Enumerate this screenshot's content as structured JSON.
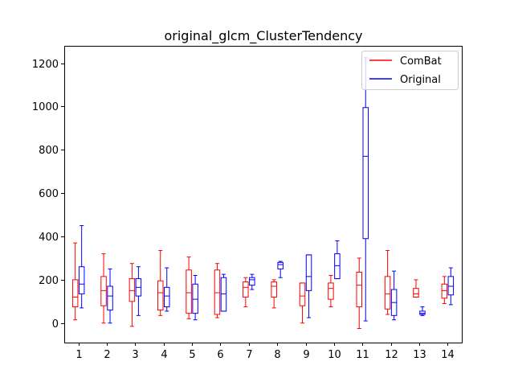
{
  "chart_data": {
    "type": "box",
    "title": "original_glcm_ClusterTendency",
    "xlabel": "",
    "ylabel": "",
    "categories": [
      "1",
      "2",
      "3",
      "4",
      "5",
      "6",
      "7",
      "8",
      "9",
      "10",
      "11",
      "12",
      "13",
      "14"
    ],
    "ylim": [
      -90,
      1280
    ],
    "yticks": [
      0,
      200,
      400,
      600,
      800,
      1000,
      1200
    ],
    "grid": false,
    "legend_position": "top-right",
    "series": [
      {
        "name": "ComBat",
        "color": "#ff0000",
        "boxes": [
          {
            "whislo": 15,
            "q1": 75,
            "med": 120,
            "q3": 200,
            "whishi": 370
          },
          {
            "whislo": 0,
            "q1": 80,
            "med": 150,
            "q3": 215,
            "whishi": 320
          },
          {
            "whislo": -15,
            "q1": 100,
            "med": 150,
            "q3": 205,
            "whishi": 275
          },
          {
            "whislo": 35,
            "q1": 60,
            "med": 140,
            "q3": 195,
            "whishi": 335
          },
          {
            "whislo": 20,
            "q1": 45,
            "med": 140,
            "q3": 245,
            "whishi": 305
          },
          {
            "whislo": 25,
            "q1": 40,
            "med": 140,
            "q3": 245,
            "whishi": 275
          },
          {
            "whislo": 75,
            "q1": 120,
            "med": 165,
            "q3": 190,
            "whishi": 210
          },
          {
            "whislo": 70,
            "q1": 120,
            "med": 170,
            "q3": 190,
            "whishi": 200
          },
          {
            "whislo": 0,
            "q1": 80,
            "med": 125,
            "q3": 185,
            "whishi": 185
          },
          {
            "whislo": 75,
            "q1": 110,
            "med": 160,
            "q3": 185,
            "whishi": 220
          },
          {
            "whislo": -25,
            "q1": 75,
            "med": 175,
            "q3": 235,
            "whishi": 300
          },
          {
            "whislo": 40,
            "q1": 65,
            "med": 135,
            "q3": 215,
            "whishi": 335
          },
          {
            "whislo": 120,
            "q1": 120,
            "med": 135,
            "q3": 160,
            "whishi": 200
          },
          {
            "whislo": 90,
            "q1": 115,
            "med": 150,
            "q3": 180,
            "whishi": 215
          }
        ]
      },
      {
        "name": "Original",
        "color": "#0000ff",
        "boxes": [
          {
            "whislo": 70,
            "q1": 135,
            "med": 180,
            "q3": 260,
            "whishi": 450
          },
          {
            "whislo": 0,
            "q1": 60,
            "med": 125,
            "q3": 170,
            "whishi": 250
          },
          {
            "whislo": 35,
            "q1": 125,
            "med": 165,
            "q3": 205,
            "whishi": 260
          },
          {
            "whislo": 55,
            "q1": 75,
            "med": 125,
            "q3": 165,
            "whishi": 255
          },
          {
            "whislo": 15,
            "q1": 45,
            "med": 110,
            "q3": 180,
            "whishi": 220
          },
          {
            "whislo": 55,
            "q1": 55,
            "med": 135,
            "q3": 210,
            "whishi": 225
          },
          {
            "whislo": 155,
            "q1": 175,
            "med": 200,
            "q3": 210,
            "whishi": 225
          },
          {
            "whislo": 210,
            "q1": 250,
            "med": 270,
            "q3": 280,
            "whishi": 285
          },
          {
            "whislo": 25,
            "q1": 150,
            "med": 215,
            "q3": 315,
            "whishi": 315
          },
          {
            "whislo": 205,
            "q1": 205,
            "med": 265,
            "q3": 320,
            "whishi": 380
          },
          {
            "whislo": 10,
            "q1": 390,
            "med": 770,
            "q3": 995,
            "whishi": 1225
          },
          {
            "whislo": 15,
            "q1": 35,
            "med": 95,
            "q3": 155,
            "whishi": 240
          },
          {
            "whislo": 35,
            "q1": 40,
            "med": 45,
            "q3": 55,
            "whishi": 75
          },
          {
            "whislo": 85,
            "q1": 130,
            "med": 170,
            "q3": 215,
            "whishi": 255
          }
        ]
      }
    ]
  }
}
